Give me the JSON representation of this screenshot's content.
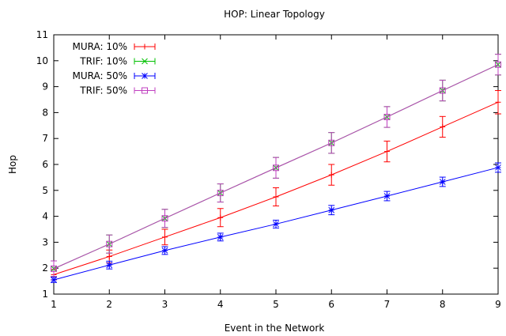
{
  "chart_data": {
    "type": "line",
    "title": "HOP: Linear Topology",
    "xlabel": "Event in the Network",
    "ylabel": "Hop",
    "xlim": [
      1,
      9
    ],
    "ylim": [
      1,
      11
    ],
    "x_ticks": [
      1,
      2,
      3,
      4,
      5,
      6,
      7,
      8,
      9
    ],
    "y_ticks": [
      1,
      2,
      3,
      4,
      5,
      6,
      7,
      8,
      9,
      10,
      11
    ],
    "grid": false,
    "legend_position": "top-left",
    "x": [
      1,
      2,
      3,
      4,
      5,
      6,
      7,
      8,
      9
    ],
    "series": [
      {
        "name": "MURA: 10%",
        "color": "#ff0000",
        "marker": "plus",
        "values": [
          1.75,
          2.45,
          3.2,
          3.95,
          4.75,
          5.6,
          6.5,
          7.45,
          8.4
        ],
        "errors": [
          0.2,
          0.25,
          0.3,
          0.35,
          0.35,
          0.4,
          0.4,
          0.4,
          0.45
        ]
      },
      {
        "name": "TRIF: 10%",
        "color": "#00c000",
        "marker": "cross",
        "values": [
          1.98,
          2.93,
          3.92,
          4.9,
          5.87,
          6.83,
          7.83,
          8.85,
          9.85
        ],
        "errors": [
          0.3,
          0.35,
          0.35,
          0.35,
          0.4,
          0.4,
          0.4,
          0.4,
          0.4
        ]
      },
      {
        "name": "MURA: 50%",
        "color": "#0000ff",
        "marker": "star",
        "values": [
          1.55,
          2.12,
          2.68,
          3.2,
          3.7,
          4.24,
          4.78,
          5.33,
          5.88
        ],
        "errors": [
          0.1,
          0.15,
          0.15,
          0.15,
          0.15,
          0.18,
          0.18,
          0.18,
          0.18
        ]
      },
      {
        "name": "TRIF: 50%",
        "color": "#c040c0",
        "marker": "square",
        "values": [
          1.98,
          2.93,
          3.92,
          4.9,
          5.87,
          6.83,
          7.83,
          8.85,
          9.85
        ],
        "errors": [
          0.3,
          0.35,
          0.35,
          0.35,
          0.4,
          0.4,
          0.4,
          0.4,
          0.4
        ]
      }
    ]
  }
}
